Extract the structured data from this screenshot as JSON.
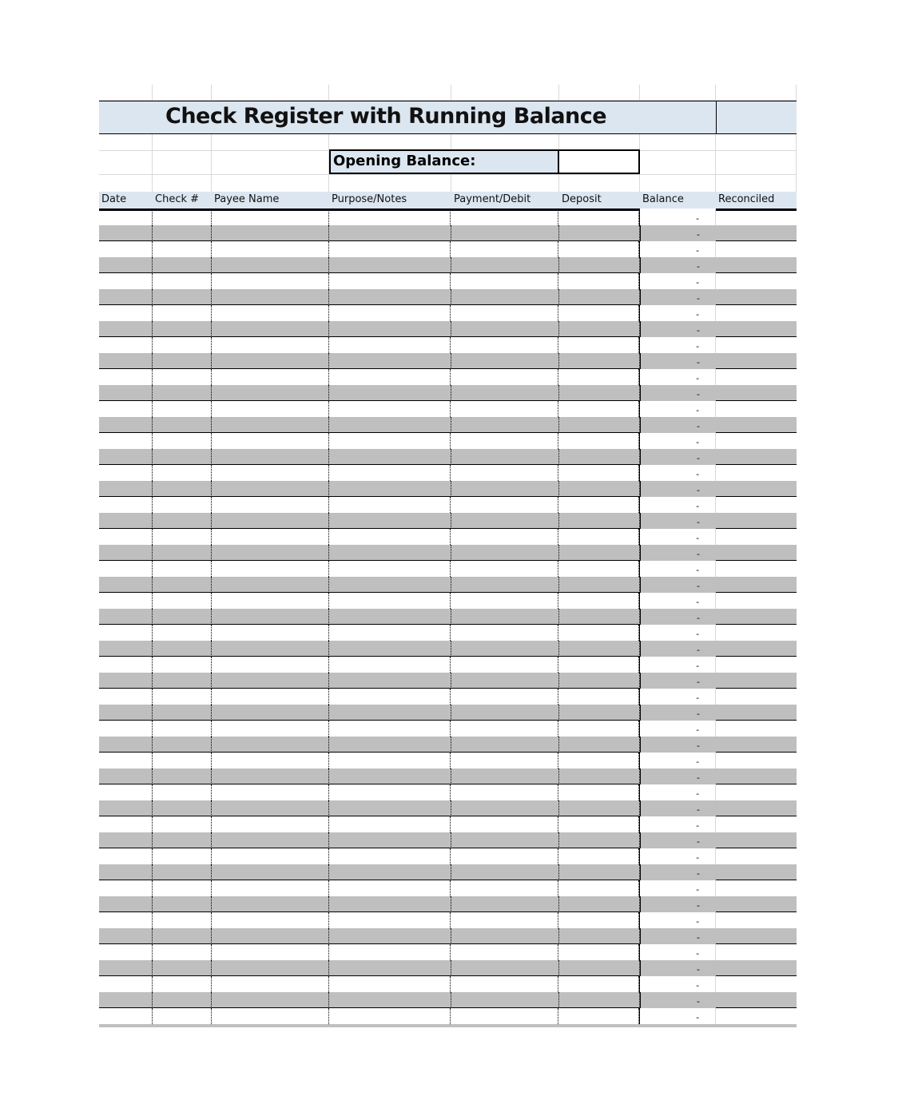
{
  "title": "Check Register with Running Balance",
  "opening_balance": {
    "label": "Opening Balance:",
    "value": ""
  },
  "columns": [
    "Date",
    "Check #",
    "Payee Name",
    "Purpose/Notes",
    "Payment/Debit",
    "Deposit",
    "Balance",
    "Reconciled"
  ],
  "colors": {
    "header_fill": "#dce6f1",
    "stripe_fill": "#bfbfbf"
  },
  "balances": [
    "-",
    "-",
    "-",
    "-",
    "-",
    "-",
    "-",
    "-",
    "-",
    "-",
    "-",
    "-",
    "-",
    "-",
    "-",
    "-",
    "-",
    "-",
    "-",
    "-",
    "-",
    "-",
    "-",
    "-",
    "-",
    "-",
    "-",
    "-",
    "-",
    "-",
    "-",
    "-",
    "-",
    "-",
    "-",
    "-",
    "-",
    "-",
    "-",
    "-",
    "-",
    "-",
    "-",
    "-",
    "-",
    "-",
    "-",
    "-",
    "-",
    "-",
    "-"
  ]
}
